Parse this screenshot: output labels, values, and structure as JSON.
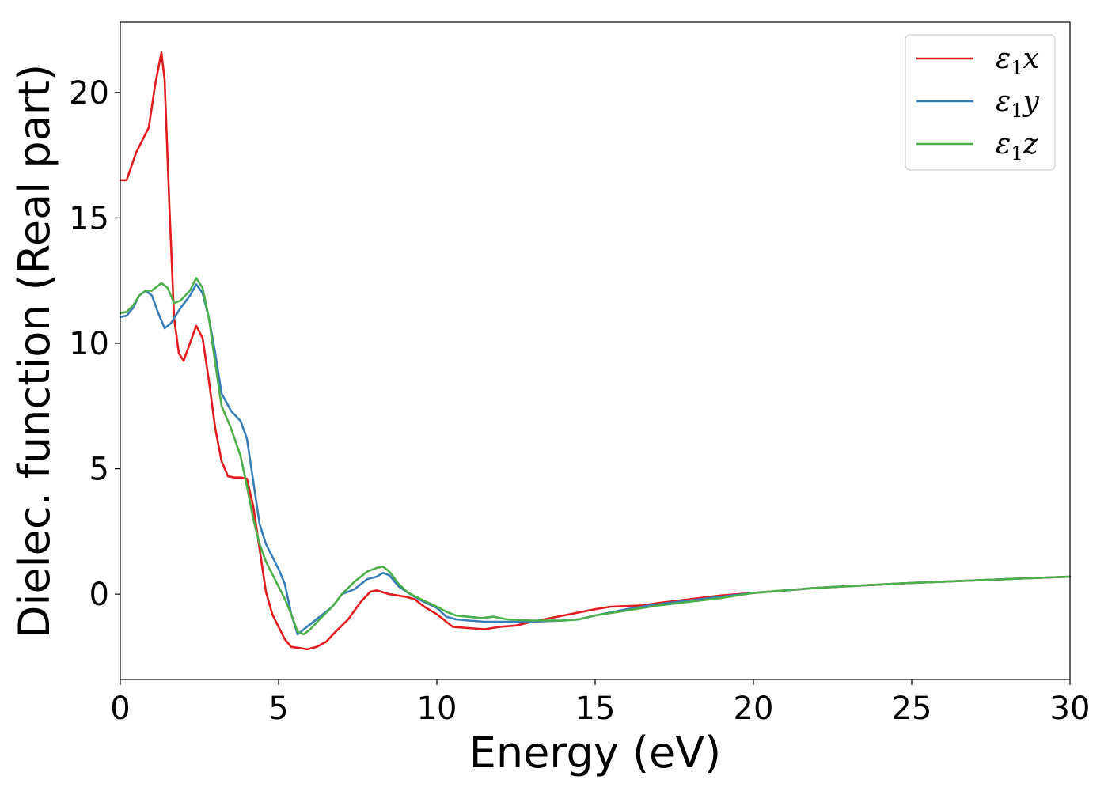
{
  "chart_data": {
    "type": "line",
    "xlabel": "Energy (eV)",
    "ylabel": "Dielec. function (Real part)",
    "xlim": [
      0,
      30
    ],
    "ylim": [
      -3.4,
      22.8
    ],
    "xticks": [
      0,
      5,
      10,
      15,
      20,
      25,
      30
    ],
    "xtick_labels": [
      "0",
      "5",
      "10",
      "15",
      "20",
      "25",
      "30"
    ],
    "yticks": [
      0,
      5,
      10,
      15,
      20
    ],
    "ytick_labels": [
      "0",
      "5",
      "10",
      "15",
      "20"
    ],
    "grid": false,
    "legend_position": "top-right",
    "series": [
      {
        "name": "ε1x",
        "legend_base": "ε",
        "legend_sub": "1",
        "legend_var": "x",
        "color": "#e41a1c",
        "points": [
          [
            0,
            16.5
          ],
          [
            0.2,
            16.5
          ],
          [
            0.5,
            17.6
          ],
          [
            0.9,
            18.6
          ],
          [
            1.1,
            20.3
          ],
          [
            1.3,
            21.6
          ],
          [
            1.4,
            20.5
          ],
          [
            1.55,
            15.5
          ],
          [
            1.7,
            11.0
          ],
          [
            1.85,
            9.6
          ],
          [
            2.0,
            9.3
          ],
          [
            2.2,
            10.0
          ],
          [
            2.4,
            10.7
          ],
          [
            2.6,
            10.2
          ],
          [
            2.8,
            8.5
          ],
          [
            3.0,
            6.6
          ],
          [
            3.2,
            5.3
          ],
          [
            3.4,
            4.7
          ],
          [
            3.6,
            4.65
          ],
          [
            3.8,
            4.65
          ],
          [
            4.0,
            4.6
          ],
          [
            4.2,
            3.5
          ],
          [
            4.4,
            1.8
          ],
          [
            4.6,
            0.1
          ],
          [
            4.8,
            -0.8
          ],
          [
            5.0,
            -1.3
          ],
          [
            5.2,
            -1.8
          ],
          [
            5.4,
            -2.1
          ],
          [
            5.7,
            -2.15
          ],
          [
            5.9,
            -2.2
          ],
          [
            6.2,
            -2.1
          ],
          [
            6.5,
            -1.9
          ],
          [
            6.8,
            -1.5
          ],
          [
            7.2,
            -1.0
          ],
          [
            7.6,
            -0.3
          ],
          [
            7.9,
            0.1
          ],
          [
            8.1,
            0.15
          ],
          [
            8.5,
            0.0
          ],
          [
            9.0,
            -0.1
          ],
          [
            9.3,
            -0.2
          ],
          [
            9.6,
            -0.5
          ],
          [
            10.0,
            -0.8
          ],
          [
            10.2,
            -1.0
          ],
          [
            10.5,
            -1.3
          ],
          [
            11.0,
            -1.35
          ],
          [
            11.5,
            -1.4
          ],
          [
            12.0,
            -1.3
          ],
          [
            12.5,
            -1.25
          ],
          [
            13.0,
            -1.1
          ],
          [
            14.0,
            -0.85
          ],
          [
            15.0,
            -0.6
          ],
          [
            15.5,
            -0.5
          ],
          [
            16.5,
            -0.45
          ],
          [
            17.0,
            -0.35
          ],
          [
            18.0,
            -0.2
          ],
          [
            19.0,
            -0.05
          ],
          [
            20.0,
            0.05
          ],
          [
            21.0,
            0.15
          ],
          [
            22.0,
            0.25
          ],
          [
            25.0,
            0.45
          ],
          [
            28.0,
            0.6
          ],
          [
            30.0,
            0.7
          ]
        ]
      },
      {
        "name": "ε1y",
        "legend_base": "ε",
        "legend_sub": "1",
        "legend_var": "y",
        "color": "#377eb8",
        "points": [
          [
            0,
            11.05
          ],
          [
            0.2,
            11.1
          ],
          [
            0.4,
            11.4
          ],
          [
            0.6,
            11.9
          ],
          [
            0.8,
            12.1
          ],
          [
            1.0,
            11.9
          ],
          [
            1.2,
            11.2
          ],
          [
            1.4,
            10.6
          ],
          [
            1.6,
            10.8
          ],
          [
            1.9,
            11.4
          ],
          [
            2.2,
            11.9
          ],
          [
            2.4,
            12.35
          ],
          [
            2.6,
            12.0
          ],
          [
            2.8,
            11.0
          ],
          [
            3.0,
            9.6
          ],
          [
            3.2,
            8.0
          ],
          [
            3.5,
            7.3
          ],
          [
            3.8,
            6.9
          ],
          [
            4.0,
            6.2
          ],
          [
            4.2,
            4.5
          ],
          [
            4.4,
            2.8
          ],
          [
            4.6,
            2.0
          ],
          [
            4.8,
            1.5
          ],
          [
            5.0,
            1.0
          ],
          [
            5.2,
            0.4
          ],
          [
            5.4,
            -0.8
          ],
          [
            5.6,
            -1.6
          ],
          [
            5.8,
            -1.4
          ],
          [
            6.0,
            -1.2
          ],
          [
            6.3,
            -0.9
          ],
          [
            6.7,
            -0.5
          ],
          [
            7.0,
            0.0
          ],
          [
            7.4,
            0.2
          ],
          [
            7.8,
            0.6
          ],
          [
            8.1,
            0.7
          ],
          [
            8.3,
            0.85
          ],
          [
            8.5,
            0.75
          ],
          [
            8.8,
            0.3
          ],
          [
            9.1,
            0.05
          ],
          [
            9.5,
            -0.25
          ],
          [
            10.0,
            -0.55
          ],
          [
            10.3,
            -0.9
          ],
          [
            10.6,
            -1.0
          ],
          [
            11.0,
            -1.05
          ],
          [
            11.5,
            -1.1
          ],
          [
            12.0,
            -1.1
          ],
          [
            13.0,
            -1.1
          ],
          [
            14.0,
            -1.05
          ],
          [
            14.5,
            -1.0
          ],
          [
            15.0,
            -0.85
          ],
          [
            16.0,
            -0.6
          ],
          [
            17.0,
            -0.4
          ],
          [
            18.0,
            -0.25
          ],
          [
            19.0,
            -0.1
          ],
          [
            20.0,
            0.05
          ],
          [
            21.0,
            0.15
          ],
          [
            22.0,
            0.25
          ],
          [
            25.0,
            0.45
          ],
          [
            28.0,
            0.6
          ],
          [
            30.0,
            0.7
          ]
        ]
      },
      {
        "name": "ε1z",
        "legend_base": "ε",
        "legend_sub": "1",
        "legend_var": "z",
        "color": "#4daf4a",
        "points": [
          [
            0,
            11.2
          ],
          [
            0.2,
            11.25
          ],
          [
            0.4,
            11.5
          ],
          [
            0.6,
            11.9
          ],
          [
            0.8,
            12.1
          ],
          [
            1.0,
            12.1
          ],
          [
            1.3,
            12.4
          ],
          [
            1.5,
            12.2
          ],
          [
            1.7,
            11.6
          ],
          [
            1.9,
            11.7
          ],
          [
            2.2,
            12.1
          ],
          [
            2.4,
            12.6
          ],
          [
            2.6,
            12.2
          ],
          [
            2.8,
            11.0
          ],
          [
            3.0,
            9.2
          ],
          [
            3.2,
            7.5
          ],
          [
            3.5,
            6.6
          ],
          [
            3.8,
            5.5
          ],
          [
            4.0,
            4.3
          ],
          [
            4.2,
            3.0
          ],
          [
            4.4,
            2.0
          ],
          [
            4.6,
            1.3
          ],
          [
            4.8,
            0.8
          ],
          [
            5.0,
            0.3
          ],
          [
            5.2,
            -0.2
          ],
          [
            5.4,
            -0.8
          ],
          [
            5.6,
            -1.5
          ],
          [
            5.8,
            -1.6
          ],
          [
            6.0,
            -1.4
          ],
          [
            6.3,
            -1.0
          ],
          [
            6.7,
            -0.5
          ],
          [
            7.0,
            0.0
          ],
          [
            7.4,
            0.5
          ],
          [
            7.8,
            0.9
          ],
          [
            8.1,
            1.05
          ],
          [
            8.3,
            1.1
          ],
          [
            8.5,
            0.9
          ],
          [
            8.8,
            0.4
          ],
          [
            9.1,
            0.05
          ],
          [
            9.5,
            -0.2
          ],
          [
            10.0,
            -0.5
          ],
          [
            10.3,
            -0.7
          ],
          [
            10.6,
            -0.85
          ],
          [
            11.0,
            -0.9
          ],
          [
            11.4,
            -0.95
          ],
          [
            11.8,
            -0.9
          ],
          [
            12.2,
            -1.0
          ],
          [
            13.0,
            -1.05
          ],
          [
            14.0,
            -1.05
          ],
          [
            14.5,
            -1.0
          ],
          [
            15.0,
            -0.85
          ],
          [
            16.0,
            -0.65
          ],
          [
            17.0,
            -0.45
          ],
          [
            18.0,
            -0.3
          ],
          [
            19.0,
            -0.15
          ],
          [
            20.0,
            0.05
          ],
          [
            21.0,
            0.15
          ],
          [
            22.0,
            0.25
          ],
          [
            25.0,
            0.45
          ],
          [
            28.0,
            0.6
          ],
          [
            30.0,
            0.7
          ]
        ]
      }
    ]
  }
}
